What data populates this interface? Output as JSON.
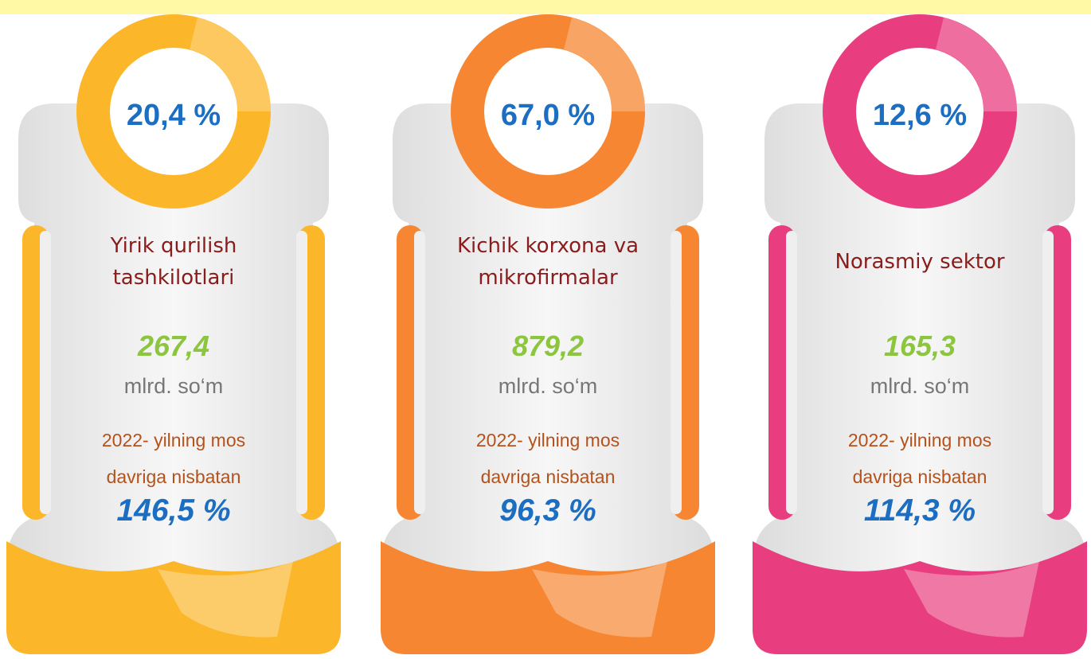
{
  "cards": [
    {
      "percent": "20,4 %",
      "title": "Yirik qurilish tashkilotlari",
      "amount": "267,4",
      "unit": "mlrd. so‘m",
      "comparison": "2022- yilning mos davriga nisbatan",
      "change": "146,5 %",
      "color": "#fbb62a"
    },
    {
      "percent": "67,0 %",
      "title": "Kichik korxona va mikrofirmalar",
      "amount": "879,2",
      "unit": "mlrd. so‘m",
      "comparison": "2022- yilning mos davriga nisbatan",
      "change": "96,3 %",
      "color": "#f68632"
    },
    {
      "percent": "12,6 %",
      "title": "Norasmiy sektor",
      "amount": "165,3",
      "unit": "mlrd. so‘m",
      "comparison": "2022- yilning mos davriga nisbatan",
      "change": "114,3 %",
      "color": "#e83e7f"
    }
  ]
}
